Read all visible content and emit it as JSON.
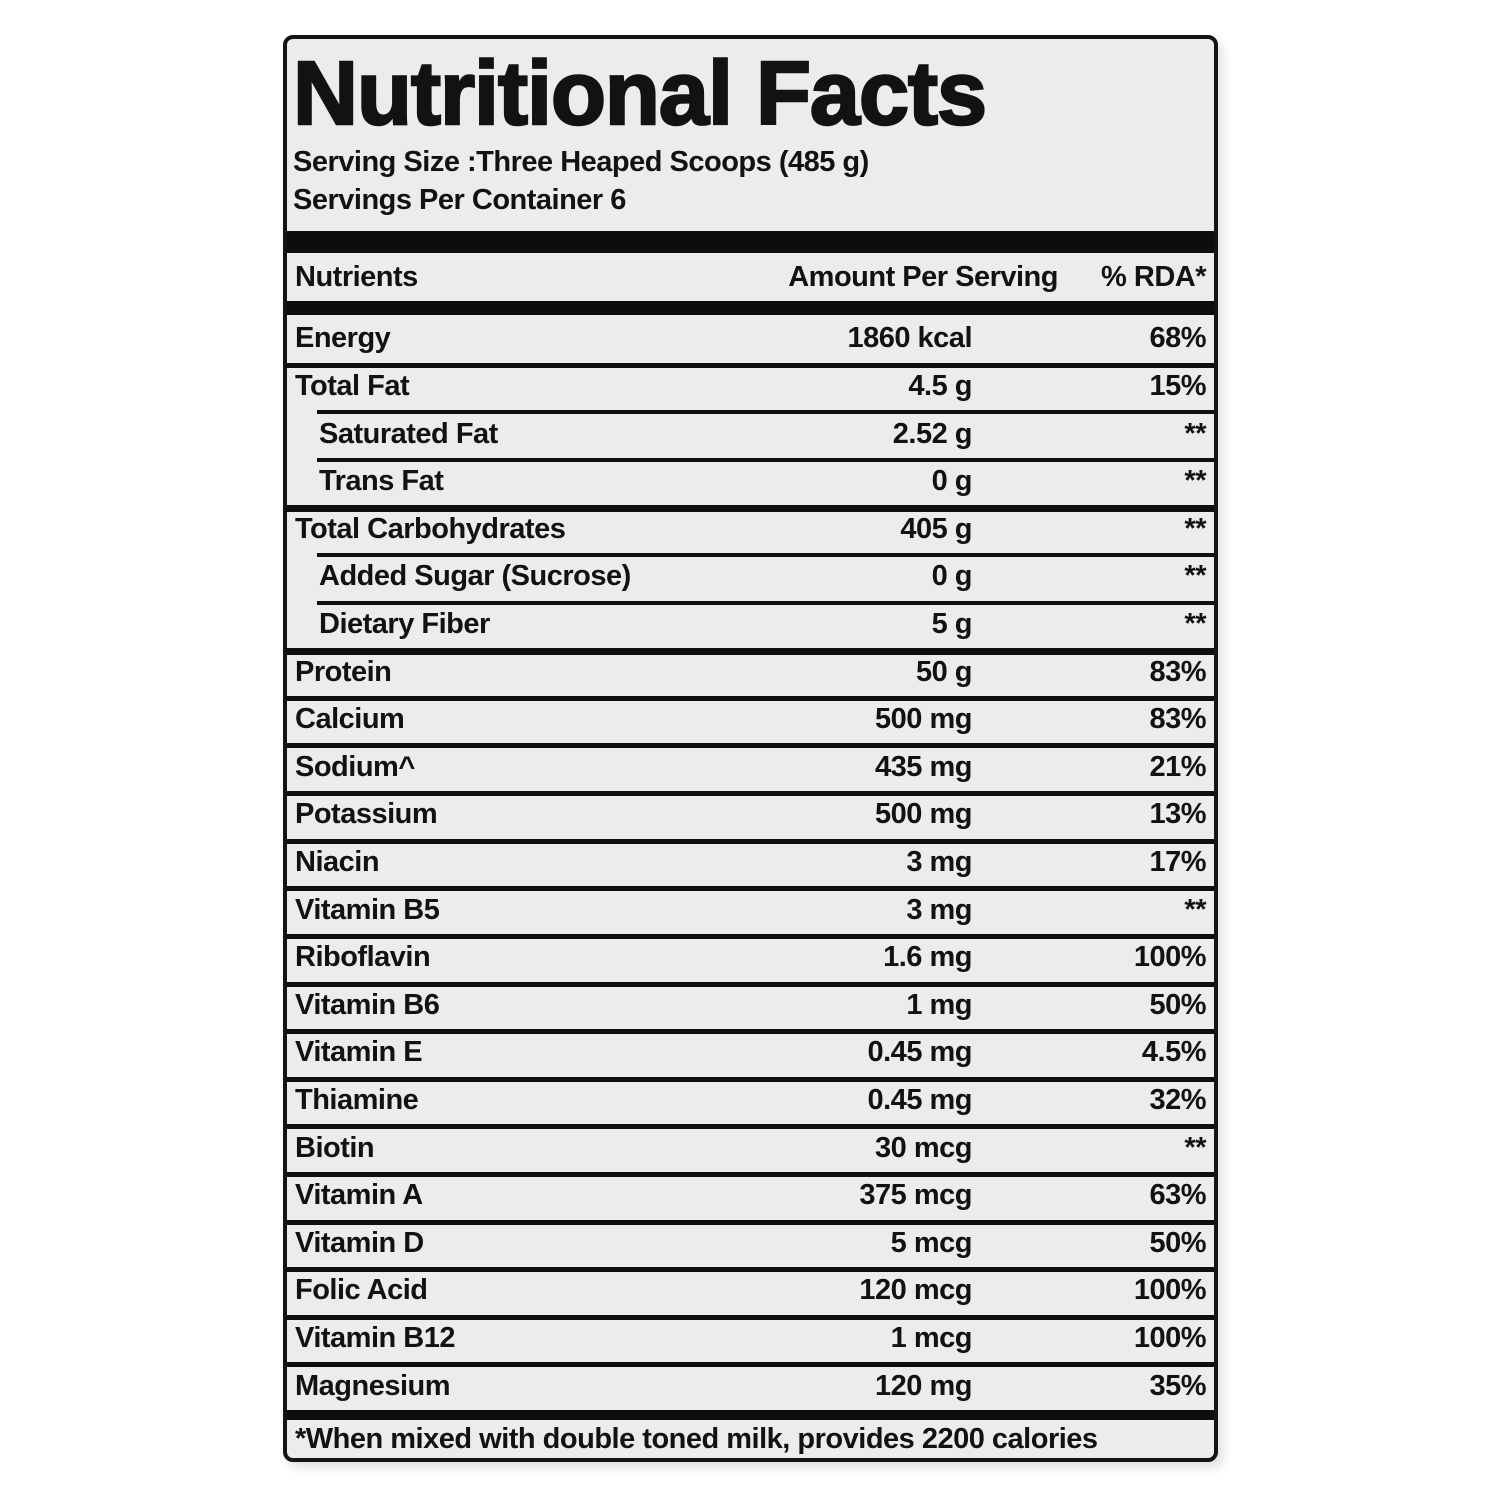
{
  "label": {
    "title": "Nutritional Facts",
    "serving_size_line": "Serving Size :Three Heaped Scoops (485 g)",
    "servings_per_container_line": "Servings Per Container 6",
    "columns": {
      "nutrients": "Nutrients",
      "amount": "Amount Per Serving",
      "rda": "% RDA*"
    },
    "rows": [
      {
        "nutrient": "Energy",
        "amount": "1860 kcal",
        "rda": "68%",
        "indent": false
      },
      {
        "nutrient": "Total Fat",
        "amount": "4.5 g",
        "rda": "15%",
        "indent": false
      },
      {
        "nutrient": "Saturated Fat",
        "amount": "2.52 g",
        "rda": "**",
        "indent": true
      },
      {
        "nutrient": "Trans Fat",
        "amount": "0 g",
        "rda": "**",
        "indent": true
      },
      {
        "nutrient": "Total Carbohydrates",
        "amount": "405 g",
        "rda": "**",
        "indent": false
      },
      {
        "nutrient": "Added Sugar (Sucrose)",
        "amount": "0 g",
        "rda": "**",
        "indent": true
      },
      {
        "nutrient": "Dietary Fiber",
        "amount": "5 g",
        "rda": "**",
        "indent": true
      },
      {
        "nutrient": "Protein",
        "amount": "50 g",
        "rda": "83%",
        "indent": false
      },
      {
        "nutrient": "Calcium",
        "amount": "500 mg",
        "rda": "83%",
        "indent": false
      },
      {
        "nutrient": "Sodium^",
        "amount": "435 mg",
        "rda": "21%",
        "indent": false
      },
      {
        "nutrient": "Potassium",
        "amount": "500 mg",
        "rda": "13%",
        "indent": false
      },
      {
        "nutrient": "Niacin",
        "amount": "3 mg",
        "rda": "17%",
        "indent": false
      },
      {
        "nutrient": "Vitamin B5",
        "amount": "3 mg",
        "rda": "**",
        "indent": false
      },
      {
        "nutrient": "Riboflavin",
        "amount": "1.6 mg",
        "rda": "100%",
        "indent": false
      },
      {
        "nutrient": "Vitamin B6",
        "amount": "1 mg",
        "rda": "50%",
        "indent": false
      },
      {
        "nutrient": "Vitamin E",
        "amount": "0.45 mg",
        "rda": "4.5%",
        "indent": false
      },
      {
        "nutrient": "Thiamine",
        "amount": "0.45 mg",
        "rda": "32%",
        "indent": false
      },
      {
        "nutrient": "Biotin",
        "amount": "30 mcg",
        "rda": "**",
        "indent": false
      },
      {
        "nutrient": "Vitamin A",
        "amount": "375 mcg",
        "rda": "63%",
        "indent": false
      },
      {
        "nutrient": "Vitamin D",
        "amount": "5 mcg",
        "rda": "50%",
        "indent": false
      },
      {
        "nutrient": "Folic Acid",
        "amount": "120 mcg",
        "rda": "100%",
        "indent": false
      },
      {
        "nutrient": "Vitamin B12",
        "amount": "1 mcg",
        "rda": "100%",
        "indent": false
      },
      {
        "nutrient": "Magnesium",
        "amount": "120 mg",
        "rda": "35%",
        "indent": false
      }
    ],
    "footnote": "*When mixed with double toned milk, provides 2200 calories",
    "colors": {
      "page_background": "#ffffff",
      "label_background": "#edecea",
      "ink": "#121212"
    }
  }
}
